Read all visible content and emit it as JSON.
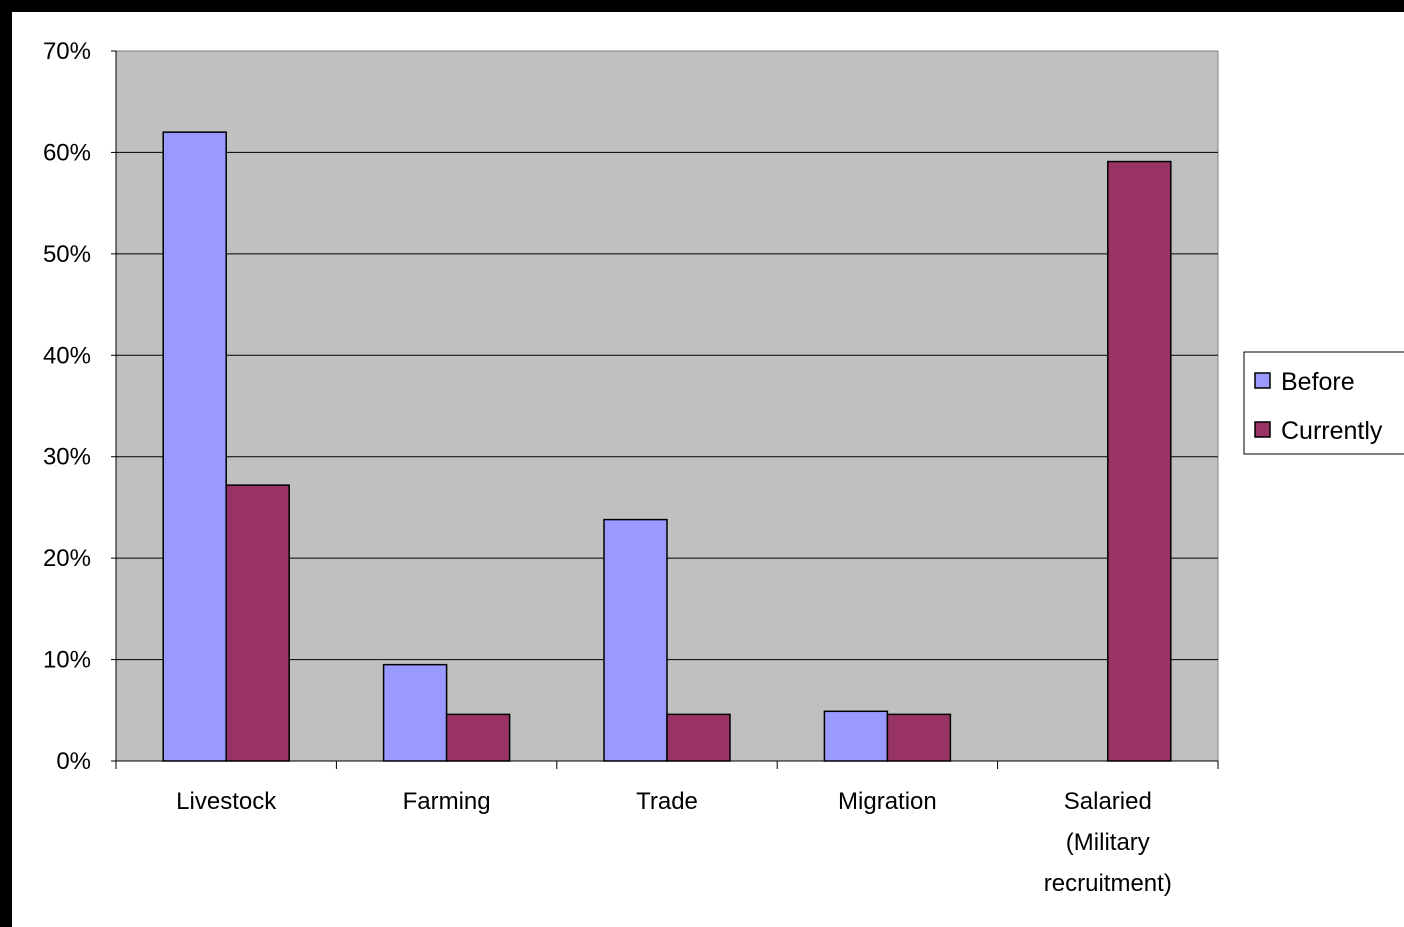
{
  "chart_data": {
    "type": "bar",
    "title": "",
    "xlabel": "",
    "ylabel": "",
    "categories": [
      [
        "Livestock"
      ],
      [
        "Farming"
      ],
      [
        "Trade"
      ],
      [
        "Migration"
      ],
      [
        "Salaried",
        "(Military",
        "recruitment)"
      ]
    ],
    "series": [
      {
        "name": "Before",
        "color": "#9999ff",
        "values": [
          62,
          9.5,
          23.8,
          4.9,
          0
        ]
      },
      {
        "name": "Currently",
        "color": "#993366",
        "values": [
          27.2,
          4.6,
          4.6,
          4.6,
          59.1
        ]
      }
    ],
    "ylim": [
      0,
      70
    ],
    "yticks": [
      "0%",
      "10%",
      "20%",
      "30%",
      "40%",
      "50%",
      "60%",
      "70%"
    ],
    "grid": true,
    "legend_position": "right",
    "colors": {
      "plot_background": "#c0c0c0",
      "page_background": "#000000"
    }
  }
}
